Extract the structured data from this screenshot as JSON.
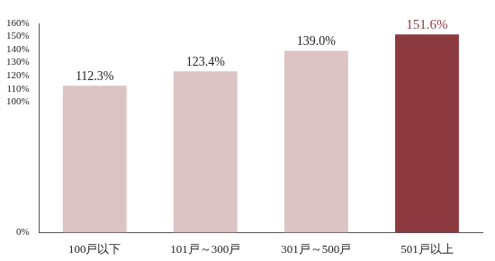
{
  "chart_data": {
    "type": "bar",
    "categories": [
      "100戸以下",
      "101戸～300戸",
      "301戸～500戸",
      "501戸以上"
    ],
    "values": [
      112.3,
      123.4,
      139.0,
      151.6
    ],
    "value_labels": [
      "112.3%",
      "123.4%",
      "139.0%",
      "151.6%"
    ],
    "colors": [
      "#dcc4c4",
      "#dcc4c4",
      "#dcc4c4",
      "#8c3a40"
    ],
    "ylim": [
      0,
      160
    ],
    "yticks": [
      {
        "value": 0,
        "label": "0%"
      },
      {
        "value": 100,
        "label": "100%"
      },
      {
        "value": 110,
        "label": "110%"
      },
      {
        "value": 120,
        "label": "120%"
      },
      {
        "value": 130,
        "label": "130%"
      },
      {
        "value": 140,
        "label": "140%"
      },
      {
        "value": 150,
        "label": "150%"
      },
      {
        "value": 160,
        "label": "160%"
      }
    ],
    "grid": false,
    "data_labels": true
  }
}
